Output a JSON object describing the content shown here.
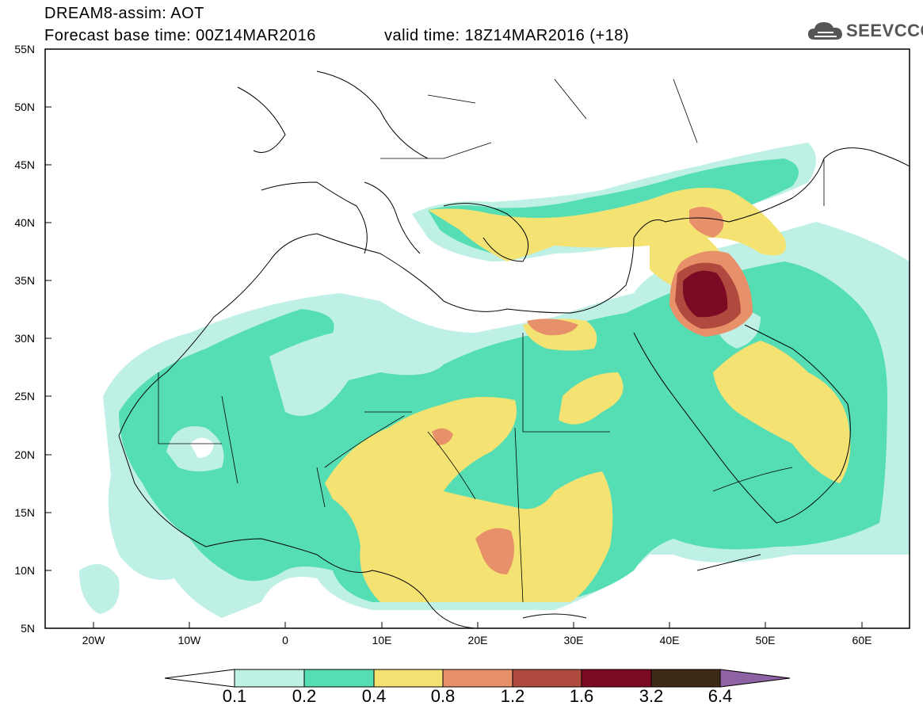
{
  "header": {
    "title": "DREAM8-assim: AOT",
    "forecast_base": "Forecast base time: 00Z14MAR2016",
    "valid_time": "valid time: 18Z14MAR2016 (+18)",
    "logo_text": "SEEVCCC"
  },
  "map": {
    "lat_labels": [
      "55N",
      "50N",
      "45N",
      "40N",
      "35N",
      "30N",
      "25N",
      "20N",
      "15N",
      "10N",
      "5N"
    ],
    "lon_labels": [
      "20W",
      "10W",
      "0",
      "10E",
      "20E",
      "30E",
      "40E",
      "50E",
      "60E"
    ],
    "lat_range": [
      5,
      55
    ],
    "lon_range": [
      -25,
      65
    ]
  },
  "colorbar": {
    "labels": [
      "0.1",
      "0.2",
      "0.4",
      "0.8",
      "1.2",
      "1.6",
      "3.2",
      "6.4"
    ],
    "colors": [
      "#ffffff",
      "#bff0e6",
      "#55ddb4",
      "#f4e273",
      "#e8906a",
      "#b14a3e",
      "#7d0a24",
      "#3d2a17",
      "#8f63a3"
    ]
  },
  "legend_colors": {
    "aot_0_1": "#bff0e6",
    "aot_0_2": "#55ddb4",
    "aot_0_4": "#f4e273",
    "aot_0_8": "#e8906a",
    "aot_1_2": "#b14a3e",
    "aot_1_6": "#7d0a24"
  }
}
